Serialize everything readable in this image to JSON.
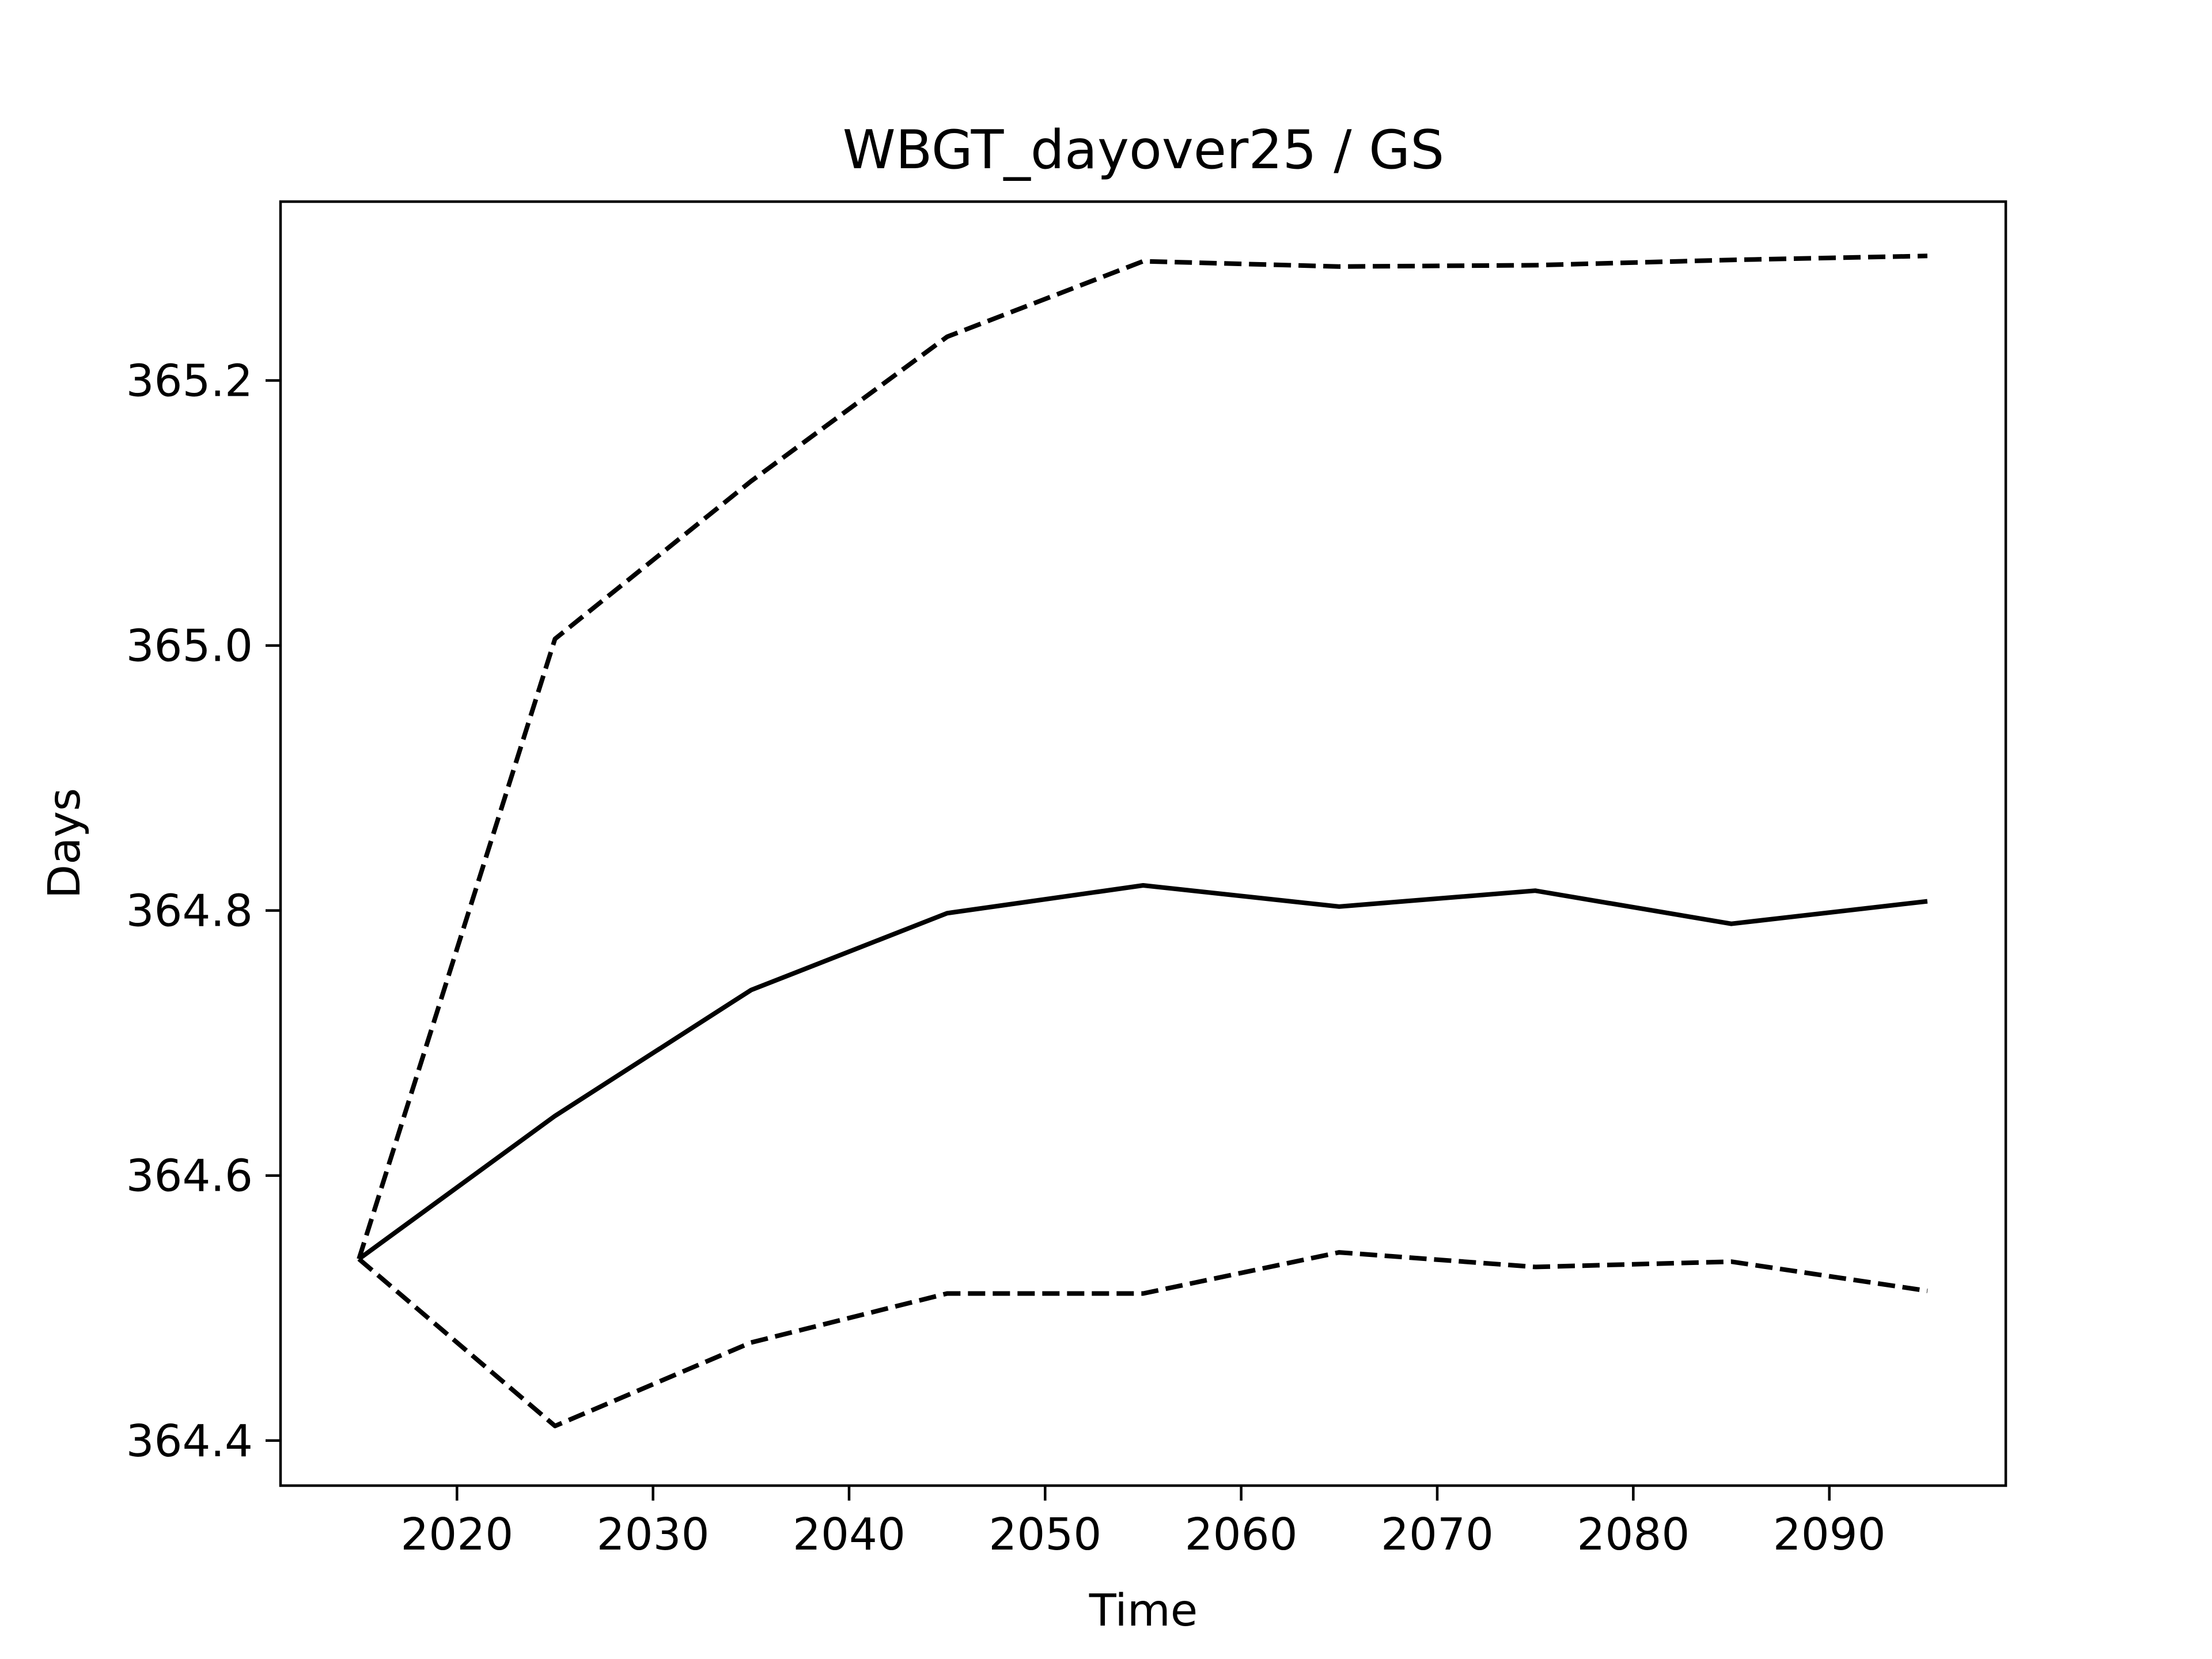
{
  "chart_data": {
    "type": "line",
    "title": "WBGT_dayover25 / GS",
    "xlabel": "Time",
    "ylabel": "Days",
    "xlim": [
      2011,
      2099
    ],
    "ylim": [
      364.366,
      365.335
    ],
    "xticks": [
      2020,
      2030,
      2040,
      2050,
      2060,
      2070,
      2080,
      2090
    ],
    "yticks": [
      364.4,
      364.6,
      364.8,
      365.0,
      365.2
    ],
    "ytick_labels": [
      "364.4",
      "364.6",
      "364.8",
      "365.0",
      "365.2"
    ],
    "grid": false,
    "x": [
      2015,
      2025,
      2035,
      2045,
      2055,
      2065,
      2075,
      2085,
      2095
    ],
    "series": [
      {
        "style": "dashed",
        "color": "#000000",
        "values": [
          364.537,
          365.005,
          365.124,
          365.233,
          365.29,
          365.286,
          365.287,
          365.291,
          365.294
        ]
      },
      {
        "style": "solid",
        "color": "#000000",
        "values": [
          364.537,
          364.645,
          364.74,
          364.798,
          364.819,
          364.803,
          364.815,
          364.79,
          364.807
        ]
      },
      {
        "style": "dashed",
        "color": "#000000",
        "values": [
          364.537,
          364.411,
          364.474,
          364.511,
          364.511,
          364.542,
          364.531,
          364.535,
          364.513
        ]
      }
    ]
  }
}
